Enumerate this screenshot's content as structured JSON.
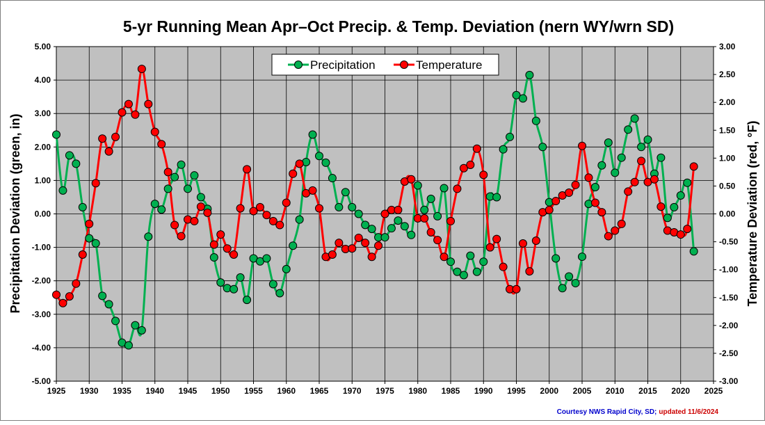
{
  "chart_data": {
    "type": "line",
    "title": "5-yr Running Mean Apr–Oct Precip. & Temp. Deviation (nern WY/wrn SD)",
    "ylabel_left": "Precipitation Deviation (green, in)",
    "ylabel_right": "Temperature Deviation (red, °F)",
    "xlim": [
      1925,
      2025
    ],
    "ylim_left": [
      -5,
      5
    ],
    "ylim_right": [
      -3,
      3
    ],
    "x_ticks": [
      "1925",
      "1930",
      "1935",
      "1940",
      "1945",
      "1950",
      "1955",
      "1960",
      "1965",
      "1970",
      "1975",
      "1980",
      "1985",
      "1990",
      "1995",
      "2000",
      "2005",
      "2010",
      "2015",
      "2020",
      "2025"
    ],
    "y_left_ticks": [
      "5.00",
      "4.00",
      "3.00",
      "2.00",
      "1.00",
      "0.00",
      "-1.00",
      "-2.00",
      "-3.00",
      "-4.00",
      "-5.00"
    ],
    "y_right_ticks": [
      "3.00",
      "2.50",
      "2.00",
      "1.50",
      "1.00",
      "0.50",
      "0.00",
      "-0.50",
      "-1.00",
      "-1.50",
      "-2.00",
      "-2.50",
      "-3.00"
    ],
    "grid": true,
    "legend_position": "top-center",
    "x": [
      1925,
      1926,
      1927,
      1928,
      1929,
      1930,
      1931,
      1932,
      1933,
      1934,
      1935,
      1936,
      1937,
      1938,
      1939,
      1940,
      1941,
      1942,
      1943,
      1944,
      1945,
      1946,
      1947,
      1948,
      1949,
      1950,
      1951,
      1952,
      1953,
      1954,
      1955,
      1956,
      1957,
      1958,
      1959,
      1960,
      1961,
      1962,
      1963,
      1964,
      1965,
      1966,
      1967,
      1968,
      1969,
      1970,
      1971,
      1972,
      1973,
      1974,
      1975,
      1976,
      1977,
      1978,
      1979,
      1980,
      1981,
      1982,
      1983,
      1984,
      1985,
      1986,
      1987,
      1988,
      1989,
      1990,
      1991,
      1992,
      1993,
      1994,
      1995,
      1996,
      1997,
      1998,
      1999,
      2000,
      2001,
      2002,
      2003,
      2004,
      2005,
      2006,
      2007,
      2008,
      2009,
      2010,
      2011,
      2012,
      2013,
      2014,
      2015,
      2016,
      2017,
      2018,
      2019,
      2020,
      2021,
      2022
    ],
    "series": [
      {
        "name": "Precipitation",
        "axis": "left",
        "color": "#00b050",
        "values": [
          2.37,
          0.7,
          1.75,
          1.5,
          0.2,
          -0.73,
          -0.88,
          -2.45,
          -2.7,
          -3.2,
          -3.85,
          -3.93,
          -3.33,
          -3.48,
          -0.68,
          0.3,
          0.13,
          0.75,
          1.1,
          1.47,
          0.75,
          1.15,
          0.5,
          0.15,
          -1.3,
          -2.05,
          -2.22,
          -2.25,
          -1.9,
          -2.57,
          -1.33,
          -1.42,
          -1.33,
          -2.1,
          -2.37,
          -1.65,
          -0.95,
          -0.17,
          1.55,
          2.37,
          1.73,
          1.53,
          1.07,
          0.2,
          0.65,
          0.2,
          0.0,
          -0.33,
          -0.45,
          -0.7,
          -0.7,
          -0.43,
          -0.2,
          -0.37,
          -0.63,
          0.85,
          0.12,
          0.45,
          -0.07,
          0.77,
          -1.43,
          -1.73,
          -1.83,
          -1.25,
          -1.73,
          -1.43,
          0.52,
          0.5,
          1.93,
          2.3,
          3.55,
          3.45,
          4.15,
          2.78,
          2.0,
          0.35,
          -1.33,
          -2.22,
          -1.87,
          -2.07,
          -1.28,
          0.3,
          0.8,
          1.45,
          2.13,
          1.23,
          1.68,
          2.52,
          2.85,
          2.0,
          2.22,
          1.2,
          1.68,
          -0.12,
          0.2,
          0.55,
          0.93,
          -1.12
        ]
      },
      {
        "name": "Temperature",
        "axis": "right",
        "color": "#ff0000",
        "values": [
          -1.45,
          -1.6,
          -1.48,
          -1.25,
          -0.73,
          -0.18,
          0.55,
          1.35,
          1.12,
          1.38,
          1.82,
          1.97,
          1.78,
          2.6,
          1.97,
          1.47,
          1.25,
          0.75,
          -0.2,
          -0.4,
          -0.1,
          -0.13,
          0.13,
          0.02,
          -0.55,
          -0.37,
          -0.62,
          -0.73,
          0.1,
          0.8,
          0.05,
          0.12,
          -0.02,
          -0.13,
          -0.2,
          0.2,
          0.72,
          0.9,
          0.37,
          0.42,
          0.1,
          -0.77,
          -0.73,
          -0.52,
          -0.63,
          -0.62,
          -0.43,
          -0.52,
          -0.77,
          -0.57,
          0.0,
          0.07,
          0.07,
          0.58,
          0.62,
          -0.08,
          -0.08,
          -0.33,
          -0.47,
          -0.77,
          -0.13,
          0.45,
          0.82,
          0.88,
          1.17,
          0.7,
          -0.6,
          -0.45,
          -0.95,
          -1.35,
          -1.35,
          -0.53,
          -1.03,
          -0.48,
          0.03,
          0.07,
          0.23,
          0.33,
          0.38,
          0.52,
          1.22,
          0.65,
          0.2,
          0.03,
          -0.4,
          -0.3,
          -0.18,
          0.4,
          0.57,
          0.95,
          0.57,
          0.62,
          0.13,
          -0.3,
          -0.33,
          -0.37,
          -0.27,
          0.85
        ]
      }
    ]
  },
  "credit": {
    "source": "Courtesy NWS Rapid City, SD;",
    "updated": "updated 11/6/2024"
  }
}
